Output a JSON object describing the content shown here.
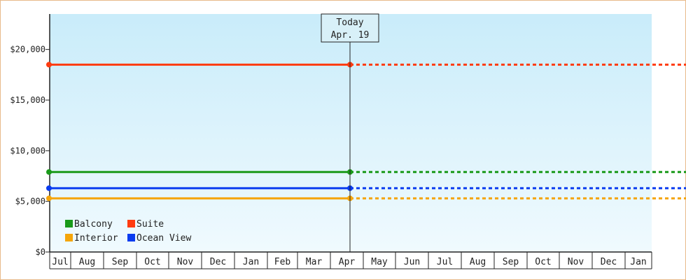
{
  "chart_data": {
    "type": "line",
    "today_marker": {
      "line1": "Today",
      "line2": "Apr. 19",
      "x_index": 9
    },
    "y_ticks": [
      "$0",
      "$5,000",
      "$10,000",
      "$15,000",
      "$20,000"
    ],
    "y_tick_values": [
      0,
      5000,
      10000,
      15000,
      20000
    ],
    "ylim": [
      0,
      23500
    ],
    "x_ticks": [
      "Jul",
      "Aug",
      "Sep",
      "Oct",
      "Nov",
      "Dec",
      "Jan",
      "Feb",
      "Mar",
      "Apr",
      "May",
      "Jun",
      "Jul",
      "Aug",
      "Sep",
      "Oct",
      "Nov",
      "Dec",
      "Jan"
    ],
    "series": [
      {
        "name": "Balcony",
        "color": "#1a9a1a",
        "values_start": 7900,
        "value_today": 7900,
        "projected": 7900
      },
      {
        "name": "Suite",
        "color": "#ff3b10",
        "values_start": 18500,
        "value_today": 18500,
        "projected": 18500
      },
      {
        "name": "Interior",
        "color": "#f5a50a",
        "values_start": 5300,
        "value_today": 5300,
        "projected": 5300
      },
      {
        "name": "Ocean View",
        "color": "#0a3cf0",
        "values_start": 6300,
        "value_today": 6300,
        "projected": 6300
      }
    ],
    "legend": [
      [
        {
          "name": "Balcony",
          "color": "#1a9a1a"
        },
        {
          "name": "Suite",
          "color": "#ff3b10"
        }
      ],
      [
        {
          "name": "Interior",
          "color": "#f5a50a"
        },
        {
          "name": "Ocean View",
          "color": "#0a3cf0"
        }
      ]
    ],
    "grid": false,
    "legend_placement": "bottom-left"
  }
}
